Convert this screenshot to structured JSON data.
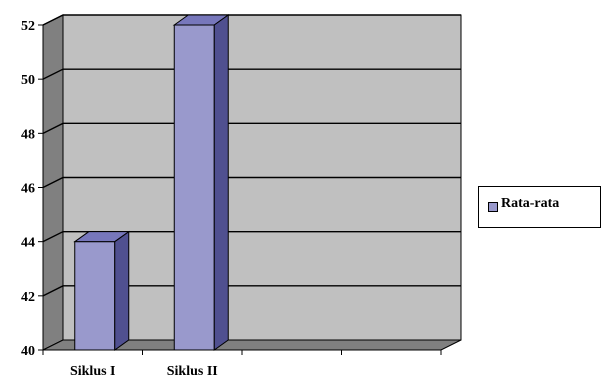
{
  "chart_data": {
    "type": "bar",
    "style": "3d-column",
    "categories": [
      "Siklus I",
      "Siklus II"
    ],
    "series": [
      {
        "name": "Rata-rata",
        "values": [
          44,
          52
        ],
        "color": "#9999cc"
      }
    ],
    "ylim": [
      40,
      52
    ],
    "yticks": [
      "40",
      "42",
      "44",
      "46",
      "48",
      "50",
      "52"
    ],
    "grid": true,
    "legend": "right",
    "plot_background": "#c0c0c0"
  }
}
